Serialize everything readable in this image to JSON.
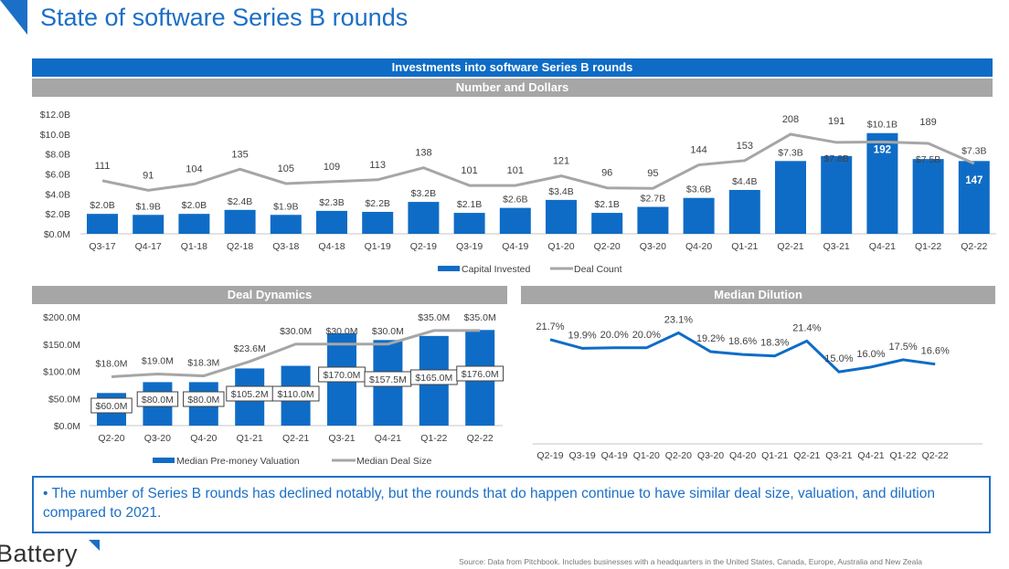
{
  "page": {
    "title": "State of software Series B rounds",
    "callout": "• The number of Series B rounds has declined notably, but the rounds that do happen continue to have similar deal size, valuation, and dilution compared to 2021.",
    "logo": "Battery",
    "source": "Source: Data from Pitchbook. Includes businesses with a headquarters in the United States, Canada, Europe, Australia and New Zeala"
  },
  "colors": {
    "accent": "#0f6cc6",
    "line_gray": "#a6a6a6",
    "header_gray": "#a6a6a6"
  },
  "chart_data": [
    {
      "id": "investments",
      "type": "bar",
      "title": "Investments into software Series B rounds",
      "subtitle": "Number and Dollars",
      "categories": [
        "Q3-17",
        "Q4-17",
        "Q1-18",
        "Q2-18",
        "Q3-18",
        "Q4-18",
        "Q1-19",
        "Q2-19",
        "Q3-19",
        "Q4-19",
        "Q1-20",
        "Q2-20",
        "Q3-20",
        "Q4-20",
        "Q1-21",
        "Q2-21",
        "Q3-21",
        "Q4-21",
        "Q1-22",
        "Q2-22"
      ],
      "series": [
        {
          "name": "Capital Invested",
          "type": "bar",
          "unit": "B USD",
          "values": [
            2.0,
            1.9,
            2.0,
            2.4,
            1.9,
            2.3,
            2.2,
            3.2,
            2.1,
            2.6,
            3.4,
            2.1,
            2.7,
            3.6,
            4.4,
            7.3,
            7.8,
            10.1,
            7.5,
            7.3
          ],
          "labels": [
            "$2.0B",
            "$1.9B",
            "$2.0B",
            "$2.4B",
            "$1.9B",
            "$2.3B",
            "$2.2B",
            "$3.2B",
            "$2.1B",
            "$2.6B",
            "$3.4B",
            "$2.1B",
            "$2.7B",
            "$3.6B",
            "$4.4B",
            "$7.3B",
            "$7.8B",
            "$10.1B",
            "$7.5B",
            "$7.3B"
          ]
        },
        {
          "name": "Deal Count",
          "type": "line",
          "values": [
            111,
            91,
            104,
            135,
            105,
            109,
            113,
            138,
            101,
            101,
            121,
            96,
            95,
            144,
            153,
            208,
            191,
            192,
            189,
            147
          ]
        }
      ],
      "yticks": [
        "$0.0M",
        "$2.0B",
        "$4.0B",
        "$6.0B",
        "$8.0B",
        "$10.0B",
        "$12.0B"
      ],
      "ylim": [
        0,
        12
      ],
      "legend": "bottom",
      "grid": false
    },
    {
      "id": "deal-dynamics",
      "type": "bar",
      "title": "Deal Dynamics",
      "categories": [
        "Q2-20",
        "Q3-20",
        "Q4-20",
        "Q1-21",
        "Q2-21",
        "Q3-21",
        "Q4-21",
        "Q1-22",
        "Q2-22"
      ],
      "series": [
        {
          "name": "Median Pre-money Valuation",
          "type": "bar",
          "unit": "M USD",
          "values": [
            60.0,
            80.0,
            80.0,
            105.2,
            110.0,
            170.0,
            157.5,
            165.0,
            176.0
          ],
          "labels": [
            "$60.0M",
            "$80.0M",
            "$80.0M",
            "$105.2M",
            "$110.0M",
            "$170.0M",
            "$157.5M",
            "$165.0M",
            "$176.0M"
          ]
        },
        {
          "name": "Median Deal Size",
          "type": "line",
          "unit": "M USD",
          "values": [
            18.0,
            19.0,
            18.3,
            23.6,
            30.0,
            30.0,
            30.0,
            35.0,
            35.0
          ],
          "labels": [
            "$18.0M",
            "$19.0M",
            "$18.3M",
            "$23.6M",
            "$30.0M",
            "$30.0M",
            "$30.0M",
            "$35.0M",
            "$35.0M"
          ]
        }
      ],
      "yticks": [
        "$0.0M",
        "$50.0M",
        "$100.0M",
        "$150.0M",
        "$200.0M"
      ],
      "ylim": [
        0,
        200
      ],
      "legend": "bottom",
      "grid": false
    },
    {
      "id": "median-dilution",
      "type": "line",
      "title": "Median Dilution",
      "categories": [
        "Q2-19",
        "Q3-19",
        "Q4-19",
        "Q1-20",
        "Q2-20",
        "Q3-20",
        "Q4-20",
        "Q1-21",
        "Q2-21",
        "Q3-21",
        "Q4-21",
        "Q1-22",
        "Q2-22"
      ],
      "series": [
        {
          "name": "Median Dilution",
          "unit": "%",
          "values": [
            21.7,
            19.9,
            20.0,
            20.0,
            23.1,
            19.2,
            18.6,
            18.3,
            21.4,
            15.0,
            16.0,
            17.5,
            16.6
          ],
          "labels": [
            "21.7%",
            "19.9%",
            "20.0%",
            "20.0%",
            "23.1%",
            "19.2%",
            "18.6%",
            "18.3%",
            "21.4%",
            "15.0%",
            "16.0%",
            "17.5%",
            "16.6%"
          ]
        }
      ],
      "ylim": [
        0,
        25
      ],
      "legend": "none",
      "grid": false
    }
  ]
}
